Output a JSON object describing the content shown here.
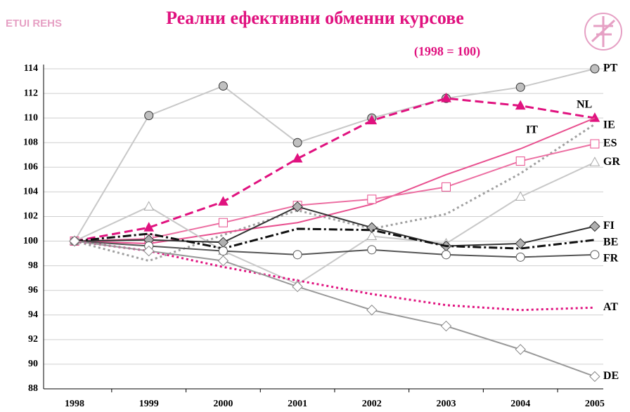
{
  "logo": "ETUI REHS",
  "chart_data": {
    "type": "line",
    "title": "Реални ефективни обменни курсове",
    "subtitle": "(1998 = 100)",
    "categories": [
      "1998",
      "1999",
      "2000",
      "2001",
      "2002",
      "2003",
      "2004",
      "2005"
    ],
    "ylim": [
      88,
      114
    ],
    "yticks": [
      88,
      90,
      92,
      94,
      96,
      98,
      100,
      102,
      104,
      106,
      108,
      110,
      112,
      114
    ],
    "grid": true,
    "series": [
      {
        "name": "PT",
        "color": "#c8c8c8",
        "style": "solid",
        "marker": "circle",
        "marker_fill": "#c0c0c0",
        "marker_stroke": "#333",
        "values": [
          100,
          110.2,
          112.6,
          108,
          110,
          111.6,
          112.5,
          114
        ]
      },
      {
        "name": "NL",
        "color": "#e0127f",
        "style": "dashed",
        "marker": "triangle",
        "marker_fill": "#e0127f",
        "marker_stroke": "#e0127f",
        "values": [
          100,
          101.1,
          103.2,
          106.7,
          109.8,
          111.6,
          111,
          110
        ]
      },
      {
        "name": "IE",
        "color": "#a0a0a0",
        "style": "dotted",
        "marker": null,
        "values": [
          100,
          98.4,
          100.5,
          102.5,
          101,
          102.2,
          105.5,
          109.5
        ]
      },
      {
        "name": "IT",
        "color": "#e8508f",
        "style": "solid",
        "marker": null,
        "values": [
          100,
          99.8,
          100.7,
          101.5,
          103,
          105.4,
          107.5,
          110
        ]
      },
      {
        "name": "ES",
        "color": "#ec6fa2",
        "style": "solid",
        "marker": "square",
        "marker_fill": "#ffffff",
        "marker_stroke": "#e8508f",
        "values": [
          100,
          100.2,
          101.5,
          102.9,
          103.4,
          104.4,
          106.5,
          107.9
        ]
      },
      {
        "name": "GR",
        "color": "#c8c8c8",
        "style": "solid",
        "marker": "triangle",
        "marker_fill": "#ffffff",
        "marker_stroke": "#aaa",
        "values": [
          100,
          102.8,
          99.2,
          96.5,
          100.4,
          99.8,
          103.6,
          106.4
        ]
      },
      {
        "name": "FI",
        "color": "#333333",
        "style": "solid",
        "marker": "diamond",
        "marker_fill": "#b0b0b0",
        "marker_stroke": "#333",
        "values": [
          100,
          100.1,
          99.9,
          102.8,
          101.1,
          99.6,
          99.8,
          101.2
        ]
      },
      {
        "name": "BE",
        "color": "#111111",
        "style": "dashdot",
        "marker": null,
        "values": [
          100,
          100.6,
          99.4,
          101,
          100.9,
          99.6,
          99.4,
          100.1
        ]
      },
      {
        "name": "FR",
        "color": "#555555",
        "style": "solid",
        "marker": "circle",
        "marker_fill": "#ffffff",
        "marker_stroke": "#555",
        "values": [
          100,
          99.6,
          99.2,
          98.9,
          99.3,
          98.9,
          98.7,
          98.9
        ]
      },
      {
        "name": "AT",
        "color": "#e0127f",
        "style": "dotted",
        "marker": null,
        "values": [
          100,
          99.2,
          97.9,
          96.8,
          95.7,
          94.8,
          94.4,
          94.6
        ]
      },
      {
        "name": "DE",
        "color": "#999999",
        "style": "solid",
        "marker": "diamond",
        "marker_fill": "#ffffff",
        "marker_stroke": "#888",
        "values": [
          100,
          99.2,
          98.4,
          96.3,
          94.4,
          93.1,
          91.2,
          89
        ]
      }
    ]
  }
}
